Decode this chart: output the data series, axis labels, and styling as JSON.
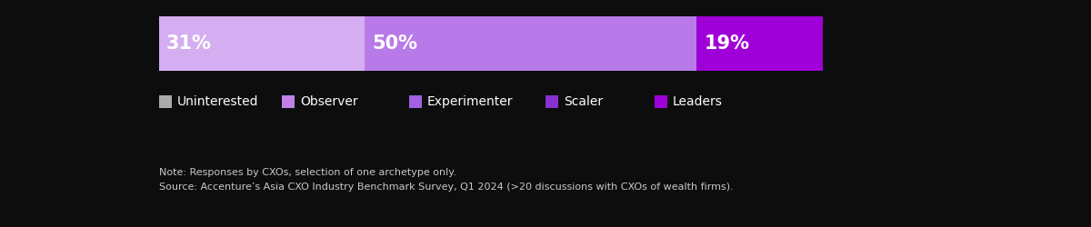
{
  "categories": [
    "Uninterested",
    "Observer",
    "Experimenter",
    "Scaler",
    "Leaders"
  ],
  "values": [
    31,
    50,
    0,
    0,
    19
  ],
  "seg_colors": [
    "#d4aef0",
    "#b87ae8",
    "#a04ee0",
    "#8020d0",
    "#a000d8"
  ],
  "legend_colors": [
    "#aaaaaa",
    "#c080e8",
    "#a060e0",
    "#8830d0",
    "#a000d8"
  ],
  "background_color": "#0d0d0d",
  "text_color": "#ffffff",
  "note_color": "#c8c8c8",
  "note_line1": "Note: Responses by CXOs, selection of one archetype only.",
  "note_line2": "Source: Accenture’s Asia CXO Industry Benchmark Survey, Q1 2024 (>20 discussions with CXOs of wealth firms).",
  "figsize": [
    12.0,
    2.5
  ],
  "dpi": 100
}
